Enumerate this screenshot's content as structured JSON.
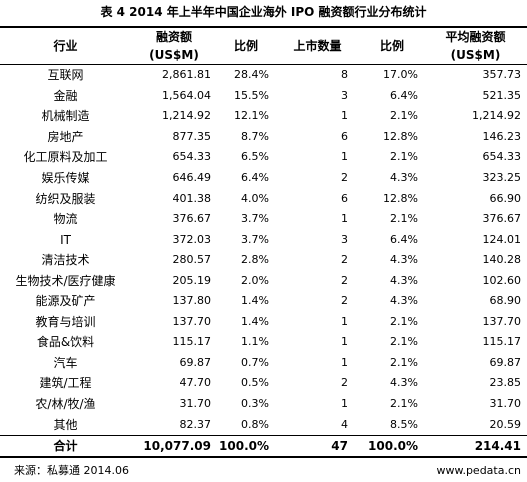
{
  "title": "表 4   2014 年上半年中国企业海外 IPO 融资额行业分布统计",
  "headers": {
    "industry": "行业",
    "amount_line1": "融资额",
    "amount_line2": "(US$M)",
    "ratio1": "比例",
    "listings": "上市数量",
    "ratio2": "比例",
    "avg_line1": "平均融资额",
    "avg_line2": "(US$M)"
  },
  "rows": [
    {
      "industry": "互联网",
      "amount": "2,861.81",
      "ratio": "28.4%",
      "count": "8",
      "count_ratio": "17.0%",
      "avg": "357.73"
    },
    {
      "industry": "金融",
      "amount": "1,564.04",
      "ratio": "15.5%",
      "count": "3",
      "count_ratio": "6.4%",
      "avg": "521.35"
    },
    {
      "industry": "机械制造",
      "amount": "1,214.92",
      "ratio": "12.1%",
      "count": "1",
      "count_ratio": "2.1%",
      "avg": "1,214.92"
    },
    {
      "industry": "房地产",
      "amount": "877.35",
      "ratio": "8.7%",
      "count": "6",
      "count_ratio": "12.8%",
      "avg": "146.23"
    },
    {
      "industry": "化工原料及加工",
      "amount": "654.33",
      "ratio": "6.5%",
      "count": "1",
      "count_ratio": "2.1%",
      "avg": "654.33"
    },
    {
      "industry": "娱乐传媒",
      "amount": "646.49",
      "ratio": "6.4%",
      "count": "2",
      "count_ratio": "4.3%",
      "avg": "323.25"
    },
    {
      "industry": "纺织及服装",
      "amount": "401.38",
      "ratio": "4.0%",
      "count": "6",
      "count_ratio": "12.8%",
      "avg": "66.90"
    },
    {
      "industry": "物流",
      "amount": "376.67",
      "ratio": "3.7%",
      "count": "1",
      "count_ratio": "2.1%",
      "avg": "376.67"
    },
    {
      "industry": "IT",
      "amount": "372.03",
      "ratio": "3.7%",
      "count": "3",
      "count_ratio": "6.4%",
      "avg": "124.01"
    },
    {
      "industry": "清洁技术",
      "amount": "280.57",
      "ratio": "2.8%",
      "count": "2",
      "count_ratio": "4.3%",
      "avg": "140.28"
    },
    {
      "industry": "生物技术/医疗健康",
      "amount": "205.19",
      "ratio": "2.0%",
      "count": "2",
      "count_ratio": "4.3%",
      "avg": "102.60"
    },
    {
      "industry": "能源及矿产",
      "amount": "137.80",
      "ratio": "1.4%",
      "count": "2",
      "count_ratio": "4.3%",
      "avg": "68.90"
    },
    {
      "industry": "教育与培训",
      "amount": "137.70",
      "ratio": "1.4%",
      "count": "1",
      "count_ratio": "2.1%",
      "avg": "137.70"
    },
    {
      "industry": "食品&饮料",
      "amount": "115.17",
      "ratio": "1.1%",
      "count": "1",
      "count_ratio": "2.1%",
      "avg": "115.17"
    },
    {
      "industry": "汽车",
      "amount": "69.87",
      "ratio": "0.7%",
      "count": "1",
      "count_ratio": "2.1%",
      "avg": "69.87"
    },
    {
      "industry": "建筑/工程",
      "amount": "47.70",
      "ratio": "0.5%",
      "count": "2",
      "count_ratio": "4.3%",
      "avg": "23.85"
    },
    {
      "industry": "农/林/牧/渔",
      "amount": "31.70",
      "ratio": "0.3%",
      "count": "1",
      "count_ratio": "2.1%",
      "avg": "31.70"
    },
    {
      "industry": "其他",
      "amount": "82.37",
      "ratio": "0.8%",
      "count": "4",
      "count_ratio": "8.5%",
      "avg": "20.59"
    }
  ],
  "total": {
    "industry": "合计",
    "amount": "10,077.09",
    "ratio": "100.0%",
    "count": "47",
    "count_ratio": "100.0%",
    "avg": "214.41"
  },
  "source": "来源：私募通  2014.06",
  "watermark": "www.pedata.cn"
}
